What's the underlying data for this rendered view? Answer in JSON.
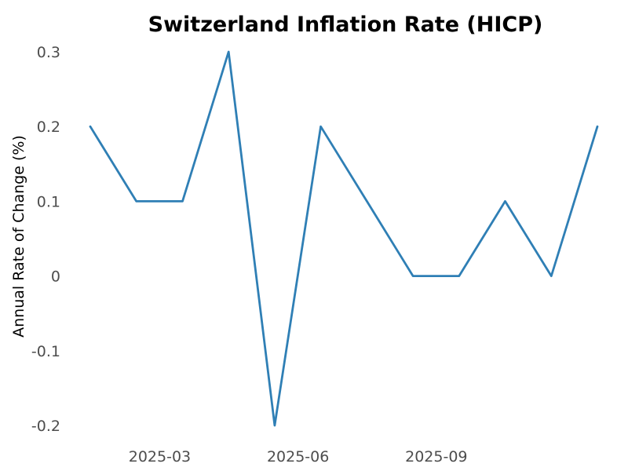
{
  "chart_data": {
    "type": "line",
    "title": "Switzerland Inflation Rate (HICP)",
    "xlabel": "",
    "ylabel": "Annual Rate of Change (%)",
    "x": [
      "2025-01",
      "2025-02",
      "2025-03",
      "2025-04",
      "2025-05",
      "2025-06",
      "2025-07",
      "2025-08",
      "2025-09",
      "2025-10",
      "2025-11",
      "2025-12"
    ],
    "series": [
      {
        "values": [
          0.2,
          0.1,
          0.1,
          0.3,
          -0.2,
          0.2,
          0.1,
          0.0,
          0.0,
          0.1,
          0.0,
          0.2
        ],
        "color": "#2f7fb5"
      }
    ],
    "x_ticks": [
      "2025-03",
      "2025-06",
      "2025-09"
    ],
    "y_ticks": [
      0.3,
      0.2,
      0.1,
      0,
      -0.1,
      -0.2
    ],
    "ylim": [
      -0.2,
      0.3
    ],
    "grid": false,
    "legend": "none"
  }
}
